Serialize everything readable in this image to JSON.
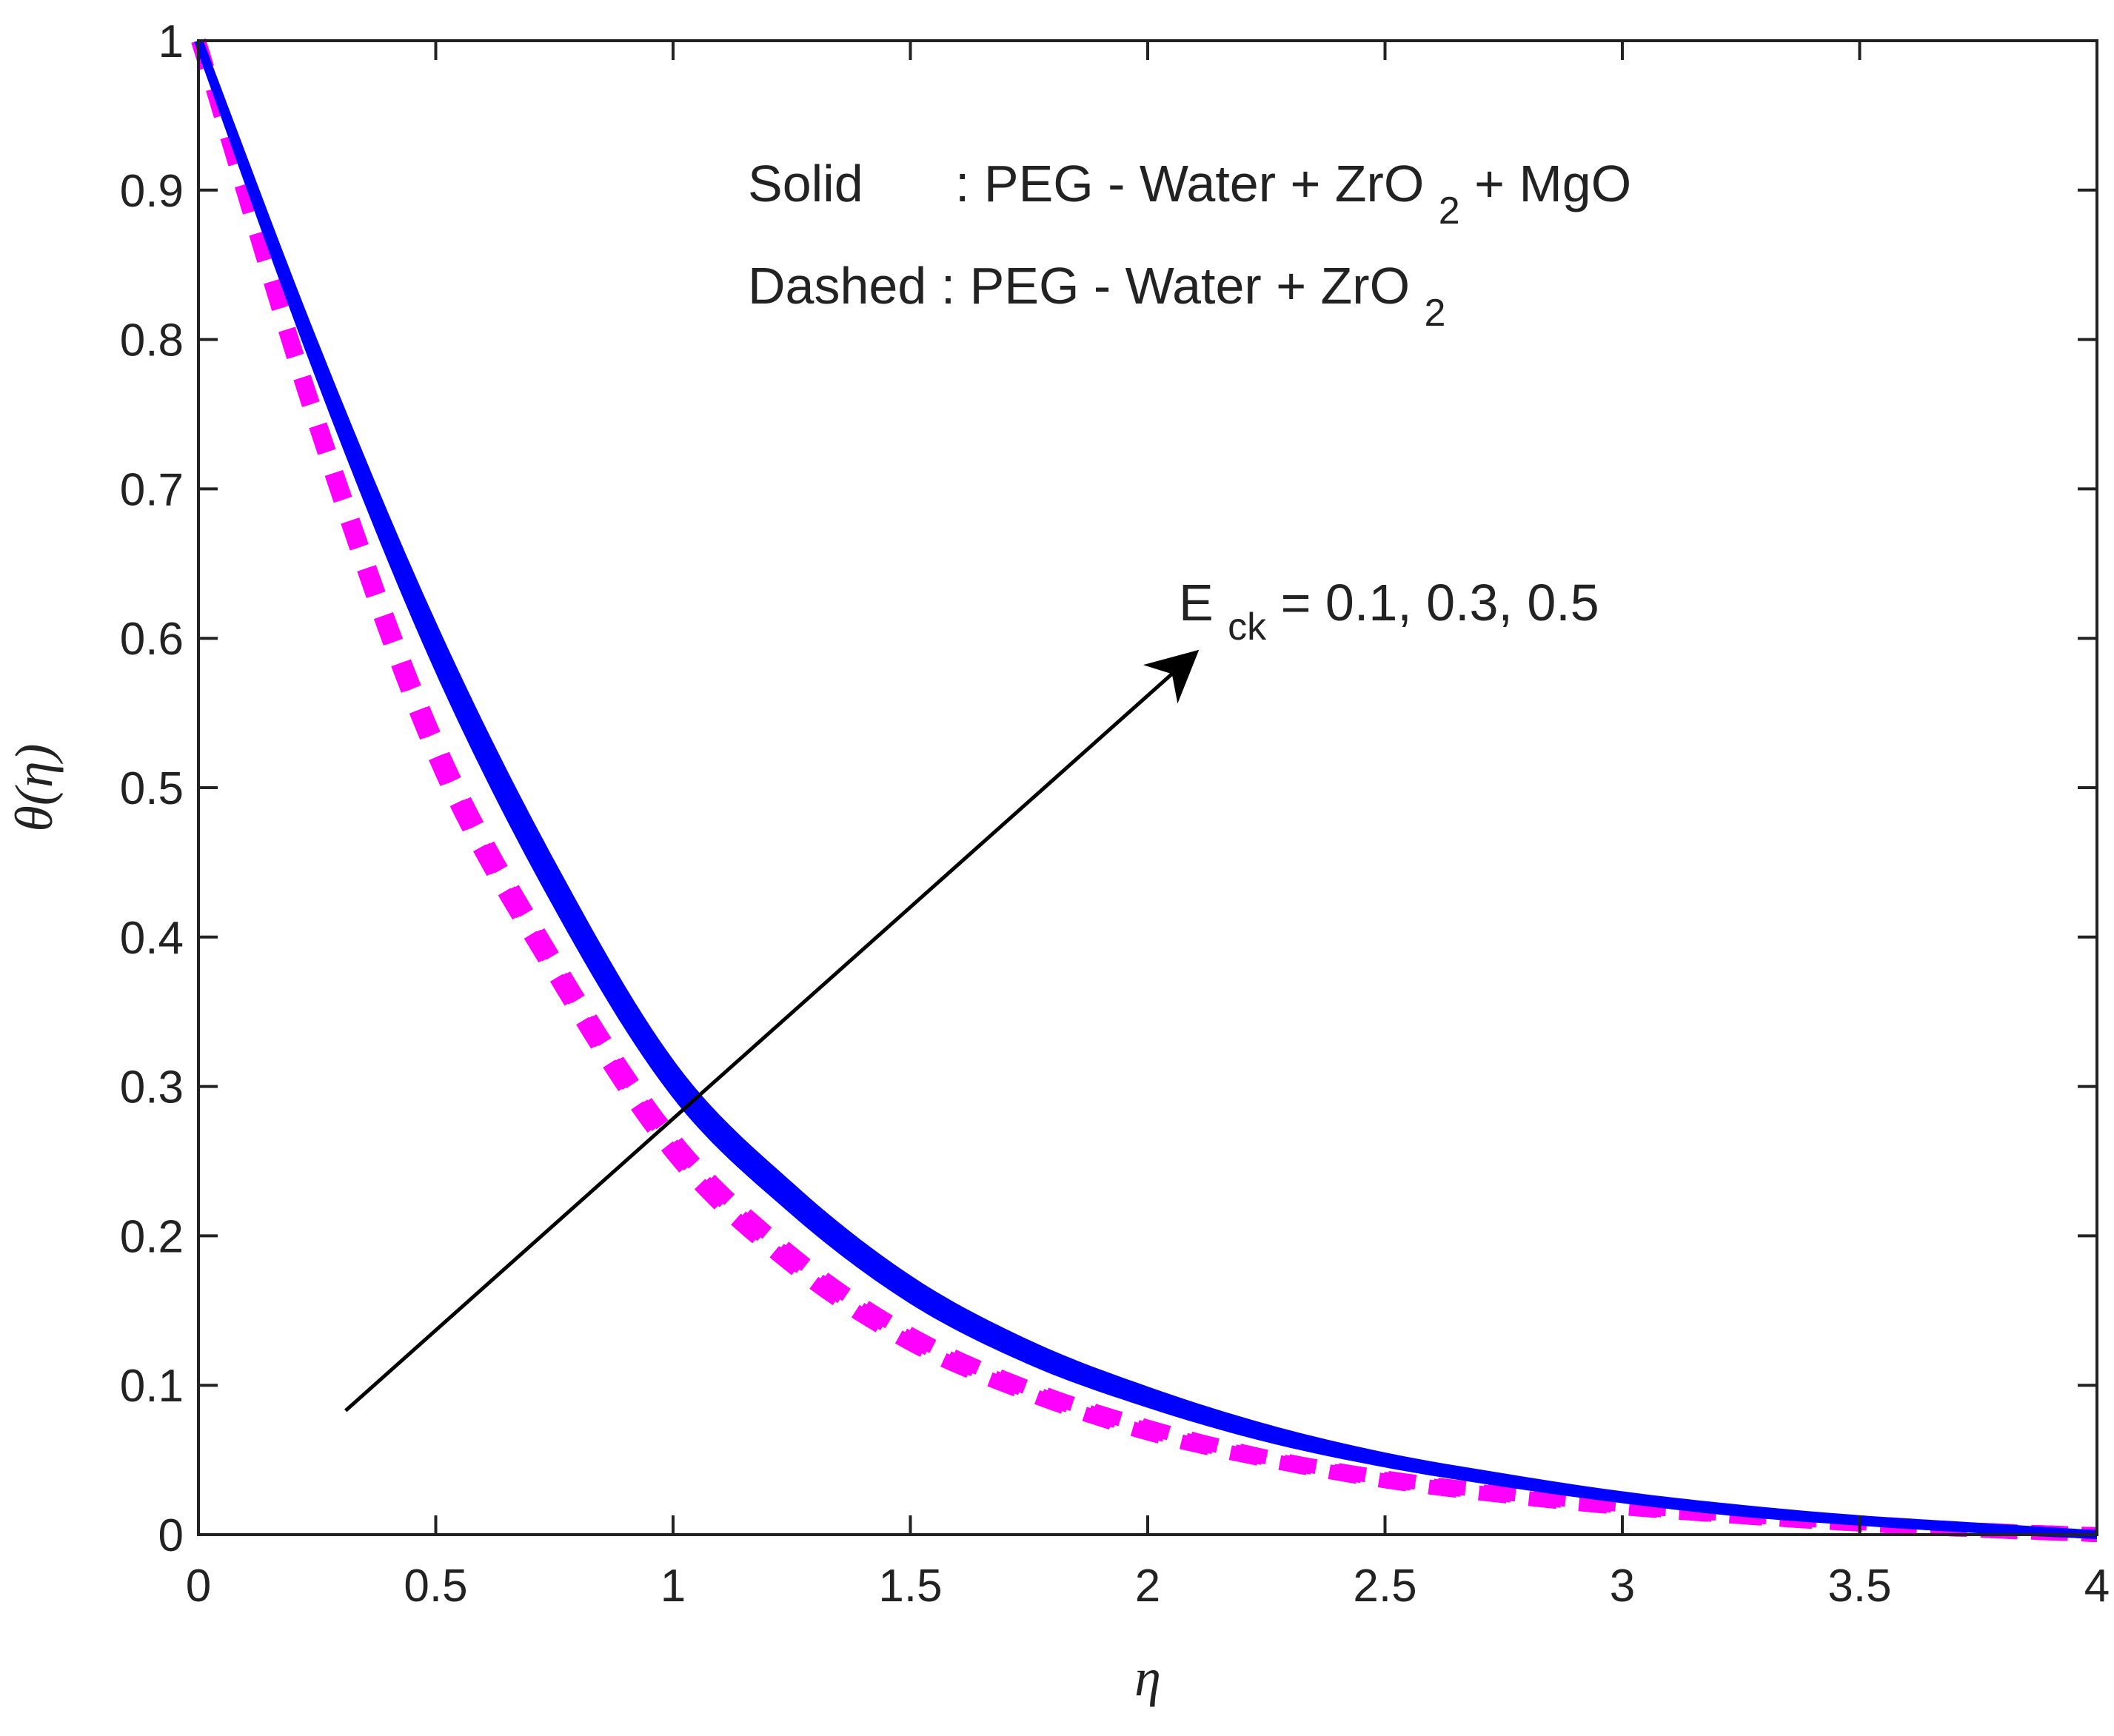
{
  "chart_data": {
    "type": "line",
    "xlabel": "η",
    "ylabel": "θ(η)",
    "xlim": [
      0,
      4
    ],
    "ylim": [
      0,
      1
    ],
    "xticks": [
      "0",
      "0.5",
      "1",
      "1.5",
      "2",
      "2.5",
      "3",
      "3.5",
      "4"
    ],
    "yticks": [
      "0",
      "0.1",
      "0.2",
      "0.3",
      "0.4",
      "0.5",
      "0.6",
      "0.7",
      "0.8",
      "0.9",
      "1"
    ],
    "grid": false,
    "legend_lines": {
      "solid_prefix": "Solid",
      "solid_text": ": PEG - Water + ZrO",
      "solid_sub": "2",
      "solid_suffix": " + MgO",
      "dashed_text": "Dashed : PEG - Water + ZrO",
      "dashed_sub": "2"
    },
    "annotation": {
      "base": "E",
      "sub": "ck",
      "rest": " = 0.1, 0.3, 0.5",
      "arrow_from": [
        0.31,
        0.083
      ],
      "arrow_to": [
        2.1,
        0.59
      ]
    },
    "x": [
      0,
      0.25,
      0.5,
      0.75,
      1,
      1.25,
      1.5,
      1.75,
      2,
      2.25,
      2.5,
      2.75,
      3,
      3.25,
      3.5,
      3.75,
      4
    ],
    "series": [
      {
        "group": "solid",
        "parameter": 0.1,
        "color": "#0000ff",
        "dash": "solid",
        "values": [
          1,
          0.78,
          0.584,
          0.425,
          0.297,
          0.218,
          0.158,
          0.117,
          0.088,
          0.065,
          0.048,
          0.035,
          0.024,
          0.015,
          0.009,
          0.004,
          0
        ]
      },
      {
        "group": "solid",
        "parameter": 0.3,
        "color": "#0000ff",
        "dash": "solid",
        "values": [
          1,
          0.786,
          0.594,
          0.435,
          0.305,
          0.225,
          0.164,
          0.122,
          0.092,
          0.068,
          0.05,
          0.036,
          0.025,
          0.016,
          0.009,
          0.004,
          0
        ]
      },
      {
        "group": "solid",
        "parameter": 0.5,
        "color": "#0000ff",
        "dash": "solid",
        "values": [
          1,
          0.792,
          0.604,
          0.445,
          0.313,
          0.232,
          0.17,
          0.127,
          0.096,
          0.071,
          0.052,
          0.038,
          0.026,
          0.017,
          0.01,
          0.005,
          0
        ]
      },
      {
        "group": "dashed",
        "parameter": 0.1,
        "color": "#ff00ff",
        "dash": "dashed",
        "values": [
          1,
          0.74,
          0.52,
          0.375,
          0.255,
          0.18,
          0.128,
          0.094,
          0.068,
          0.05,
          0.036,
          0.026,
          0.018,
          0.012,
          0.007,
          0.003,
          0
        ]
      },
      {
        "group": "dashed",
        "parameter": 0.3,
        "color": "#ff00ff",
        "dash": "dashed",
        "values": [
          1,
          0.744,
          0.526,
          0.38,
          0.26,
          0.184,
          0.131,
          0.096,
          0.07,
          0.051,
          0.037,
          0.027,
          0.019,
          0.012,
          0.007,
          0.003,
          0
        ]
      },
      {
        "group": "dashed",
        "parameter": 0.5,
        "color": "#ff00ff",
        "dash": "dashed",
        "values": [
          1,
          0.748,
          0.532,
          0.385,
          0.265,
          0.188,
          0.134,
          0.098,
          0.072,
          0.052,
          0.038,
          0.028,
          0.02,
          0.013,
          0.008,
          0.003,
          0
        ]
      }
    ]
  }
}
